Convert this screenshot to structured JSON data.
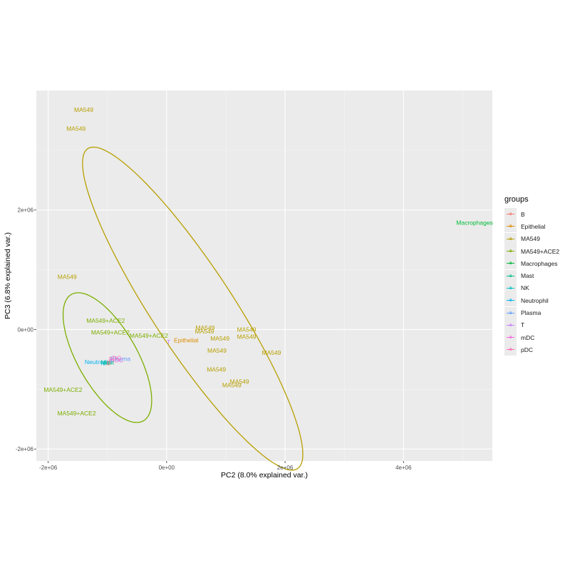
{
  "chart_data": {
    "type": "scatter",
    "xlabel": "PC2 (8.0% explained var.)",
    "ylabel": "PC3 (6.8% explained var.)",
    "xlim": [
      -2200000,
      5500000
    ],
    "ylim": [
      -2200000,
      4000000
    ],
    "x_ticks": [
      {
        "value": -2000000,
        "label": "-2e+06"
      },
      {
        "value": 0,
        "label": "0e+00"
      },
      {
        "value": 2000000,
        "label": "2e+06"
      },
      {
        "value": 4000000,
        "label": "4e+06"
      }
    ],
    "y_ticks": [
      {
        "value": -2000000,
        "label": "-2e+06"
      },
      {
        "value": 0,
        "label": "0e+00"
      },
      {
        "value": 2000000,
        "label": "2e+06"
      }
    ],
    "grid": true,
    "legend": {
      "title": "groups",
      "position": "right",
      "key_glyph": "a",
      "entries": [
        {
          "name": "B",
          "color": "#F8766D"
        },
        {
          "name": "Epithelial",
          "color": "#DE8C00"
        },
        {
          "name": "MA549",
          "color": "#B79F00"
        },
        {
          "name": "MA549+ACE2",
          "color": "#7CAE00"
        },
        {
          "name": "Macrophages",
          "color": "#00BA38"
        },
        {
          "name": "Mast",
          "color": "#00C08B"
        },
        {
          "name": "NK",
          "color": "#00BFC4"
        },
        {
          "name": "Neutrophil",
          "color": "#00B4F0"
        },
        {
          "name": "Plasma",
          "color": "#619CFF"
        },
        {
          "name": "T",
          "color": "#C77CFF"
        },
        {
          "name": "mDC",
          "color": "#F564E3"
        },
        {
          "name": "pDC",
          "color": "#FF64B0"
        }
      ]
    },
    "points": [
      {
        "label": "MA549",
        "group": "MA549",
        "x": -1400000,
        "y": 3680000
      },
      {
        "label": "MA549",
        "group": "MA549",
        "x": -1530000,
        "y": 3360000
      },
      {
        "label": "MA549",
        "group": "MA549",
        "x": -1680000,
        "y": 880000
      },
      {
        "label": "MA549",
        "group": "MA549",
        "x": 650000,
        "y": 30000
      },
      {
        "label": "MA549",
        "group": "MA549",
        "x": 640000,
        "y": -30000
      },
      {
        "label": "MA549",
        "group": "MA549",
        "x": 900000,
        "y": -150000
      },
      {
        "label": "MA549",
        "group": "MA549",
        "x": 1350000,
        "y": 0
      },
      {
        "label": "MA549",
        "group": "MA549",
        "x": 1350000,
        "y": -120000
      },
      {
        "label": "MA549",
        "group": "MA549",
        "x": 850000,
        "y": -350000
      },
      {
        "label": "MA549",
        "group": "MA549",
        "x": 1770000,
        "y": -390000
      },
      {
        "label": "MA549",
        "group": "MA549",
        "x": 840000,
        "y": -670000
      },
      {
        "label": "MA549",
        "group": "MA549",
        "x": 1230000,
        "y": -870000
      },
      {
        "label": "MA549",
        "group": "MA549",
        "x": 1100000,
        "y": -930000
      },
      {
        "label": "MA549+ACE2",
        "group": "MA549+ACE2",
        "x": -1030000,
        "y": 150000
      },
      {
        "label": "MA549+ACE2",
        "group": "MA549+ACE2",
        "x": -950000,
        "y": -50000
      },
      {
        "label": "MA549+ACE2",
        "group": "MA549+ACE2",
        "x": -300000,
        "y": -100000
      },
      {
        "label": "MA549+ACE2",
        "group": "MA549+ACE2",
        "x": -1750000,
        "y": -1010000
      },
      {
        "label": "MA549+ACE2",
        "group": "MA549+ACE2",
        "x": -1520000,
        "y": -1400000
      },
      {
        "label": "Epithelial",
        "group": "Epithelial",
        "x": 330000,
        "y": -180000
      },
      {
        "label": "T",
        "group": "T",
        "x": 30000,
        "y": -210000
      },
      {
        "label": "Macrophages",
        "group": "Macrophages",
        "x": 5200000,
        "y": 1790000
      },
      {
        "label": "Neutrophil",
        "group": "Neutrophil",
        "x": -1150000,
        "y": -540000
      },
      {
        "label": "Plasma",
        "group": "Plasma",
        "x": -780000,
        "y": -490000
      },
      {
        "label": "mDC",
        "group": "mDC",
        "x": -850000,
        "y": -510000
      },
      {
        "label": "pDC",
        "group": "pDC",
        "x": -870000,
        "y": -480000
      },
      {
        "label": "Mast",
        "group": "Mast",
        "x": -1000000,
        "y": -550000
      },
      {
        "label": "NK",
        "group": "NK",
        "x": -1040000,
        "y": -560000
      },
      {
        "label": "B",
        "group": "B",
        "x": -980000,
        "y": -560000
      }
    ],
    "ellipses": [
      {
        "group": "MA549",
        "color": "#B79F00",
        "cx": 440000,
        "cy": 350000,
        "a": 3210000,
        "b": 680000,
        "angle_deg": -56.5
      },
      {
        "group": "MA549+ACE2",
        "color": "#7CAE00",
        "cx": -1000000,
        "cy": -470000,
        "a": 1220000,
        "b": 500000,
        "angle_deg": -60
      }
    ]
  }
}
